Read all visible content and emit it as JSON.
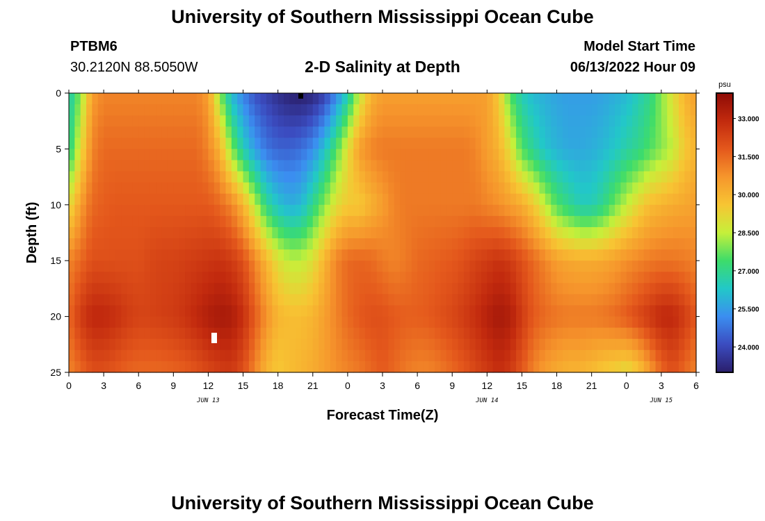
{
  "header": {
    "title": "University of Southern Mississippi Ocean Cube",
    "station": "PTBM6",
    "coords": "30.2120N  88.5050W",
    "subtitle": "2-D Salinity at Depth",
    "start_label": "Model Start Time",
    "start_value": "06/13/2022 Hour 09"
  },
  "footer": {
    "title": "University of Southern Mississippi Ocean Cube"
  },
  "colors": {
    "stops": [
      "#2a1e6b",
      "#3b4cc0",
      "#3b8ef0",
      "#22c8c8",
      "#3ddc6a",
      "#c6f03a",
      "#f7c533",
      "#f6962c",
      "#e4581c",
      "#c22a0e",
      "#8e0b06"
    ]
  },
  "chart_data": {
    "type": "heatmap",
    "title": "2-D Salinity at Depth",
    "xlabel": "Forecast Time(Z)",
    "ylabel": "Depth (ft)",
    "x_range_hours": [
      0,
      54
    ],
    "y_range_ft": [
      0,
      25
    ],
    "y_ticks": [
      0,
      5,
      10,
      15,
      20,
      25
    ],
    "y_tick_labels": [
      "0",
      "5",
      "10",
      "15",
      "20",
      "25"
    ],
    "x_ticks": [
      0,
      3,
      6,
      9,
      12,
      15,
      18,
      21,
      24,
      27,
      30,
      33,
      36,
      39,
      42,
      45,
      48,
      51,
      54
    ],
    "x_tick_labels": [
      "0",
      "3",
      "6",
      "9",
      "12",
      "15",
      "18",
      "21",
      "0",
      "3",
      "6",
      "9",
      "12",
      "15",
      "18",
      "21",
      "0",
      "3",
      "6"
    ],
    "date_labels": [
      {
        "hour": 12,
        "label": "JUN 13"
      },
      {
        "hour": 36,
        "label": "JUN 14"
      },
      {
        "hour": 51,
        "label": "JUN 15"
      }
    ],
    "colorbar": {
      "unit": "psu",
      "range": [
        23.0,
        34.0
      ],
      "ticks": [
        33.0,
        31.5,
        30.0,
        28.5,
        27.0,
        25.5,
        24.0
      ],
      "tick_labels": [
        "33.000",
        "31.500",
        "30.000",
        "28.500",
        "27.000",
        "25.500",
        "24.000"
      ]
    },
    "grid_hours": [
      0,
      1,
      2,
      3,
      4,
      5,
      6,
      7,
      8,
      9,
      10,
      11,
      12,
      13,
      14,
      15,
      16,
      17,
      18,
      19,
      20,
      21,
      22,
      23,
      24,
      25,
      26,
      27,
      28,
      29,
      30,
      31,
      32,
      33,
      34,
      35,
      36,
      37,
      38,
      39,
      40,
      41,
      42,
      43,
      44,
      45,
      46,
      47,
      48,
      49,
      50,
      51,
      52,
      53,
      54
    ],
    "grid_depths_ft": [
      0,
      5,
      10,
      15,
      20,
      25
    ],
    "salinity_psu": [
      [
        26.5,
        28.0,
        30.5,
        31.0,
        31.0,
        31.0,
        31.0,
        31.0,
        31.0,
        31.0,
        31.0,
        31.0,
        30.5,
        28.0,
        26.0,
        25.0,
        24.2,
        23.8,
        23.4,
        23.1,
        23.0,
        23.2,
        23.8,
        25.0,
        26.5,
        28.5,
        30.0,
        30.5,
        30.5,
        30.5,
        30.5,
        30.5,
        30.5,
        30.5,
        30.5,
        30.5,
        30.5,
        29.5,
        27.5,
        26.5,
        26.0,
        25.8,
        25.6,
        25.5,
        25.5,
        25.5,
        25.6,
        25.8,
        26.0,
        26.5,
        27.0,
        28.0,
        29.0,
        30.0,
        30.5
      ],
      [
        26.8,
        29.0,
        31.0,
        31.5,
        31.5,
        31.5,
        31.5,
        31.5,
        31.5,
        31.5,
        31.5,
        31.5,
        31.0,
        30.0,
        28.0,
        26.5,
        25.5,
        24.8,
        24.5,
        24.5,
        24.7,
        25.2,
        26.2,
        27.5,
        29.0,
        30.5,
        31.0,
        31.2,
        31.2,
        31.2,
        31.2,
        31.2,
        31.2,
        31.2,
        31.2,
        31.0,
        30.5,
        30.0,
        29.0,
        27.5,
        26.8,
        26.2,
        25.9,
        25.7,
        25.7,
        25.8,
        26.0,
        26.3,
        26.7,
        27.0,
        27.5,
        28.0,
        28.5,
        29.5,
        30.0
      ],
      [
        29.0,
        30.5,
        31.5,
        31.7,
        31.8,
        31.8,
        31.8,
        31.8,
        31.8,
        31.8,
        31.8,
        31.8,
        31.8,
        31.5,
        31.0,
        30.0,
        28.5,
        27.0,
        26.2,
        25.8,
        26.0,
        27.0,
        28.0,
        29.0,
        29.5,
        29.5,
        30.0,
        30.5,
        31.0,
        31.2,
        31.2,
        31.2,
        31.2,
        31.2,
        31.2,
        31.2,
        31.0,
        30.8,
        30.5,
        30.2,
        29.5,
        28.5,
        27.5,
        27.0,
        26.5,
        26.5,
        27.0,
        27.8,
        28.5,
        29.2,
        29.8,
        30.0,
        30.2,
        30.3,
        30.5
      ],
      [
        31.0,
        31.5,
        32.0,
        32.0,
        32.0,
        32.0,
        32.0,
        32.2,
        32.3,
        32.3,
        32.4,
        32.5,
        32.6,
        32.7,
        32.5,
        32.0,
        31.0,
        30.0,
        29.0,
        28.5,
        28.5,
        29.0,
        30.0,
        31.0,
        31.5,
        31.6,
        31.5,
        31.2,
        31.0,
        31.2,
        31.5,
        31.6,
        31.7,
        31.8,
        32.0,
        32.3,
        32.5,
        32.7,
        32.5,
        32.0,
        31.5,
        31.0,
        30.5,
        30.3,
        30.2,
        30.2,
        30.3,
        30.5,
        30.8,
        31.0,
        31.2,
        31.3,
        31.3,
        31.2,
        31.0
      ],
      [
        31.5,
        32.5,
        33.0,
        33.0,
        32.8,
        32.5,
        32.3,
        32.3,
        32.4,
        32.5,
        32.7,
        33.0,
        33.3,
        33.5,
        33.4,
        32.8,
        31.8,
        30.8,
        30.0,
        29.8,
        29.8,
        30.0,
        30.5,
        31.0,
        31.5,
        31.8,
        32.0,
        32.0,
        31.8,
        31.7,
        31.7,
        31.8,
        32.0,
        32.2,
        32.5,
        32.8,
        33.2,
        33.5,
        33.3,
        32.5,
        31.8,
        31.5,
        31.3,
        31.2,
        31.2,
        31.2,
        31.3,
        31.5,
        31.8,
        32.2,
        32.6,
        33.0,
        33.0,
        32.5,
        31.8
      ],
      [
        31.0,
        31.5,
        32.0,
        32.0,
        31.8,
        31.6,
        31.5,
        31.5,
        31.5,
        31.6,
        31.7,
        31.9,
        32.2,
        32.4,
        32.5,
        32.0,
        31.0,
        30.0,
        29.5,
        29.8,
        30.0,
        30.2,
        30.5,
        30.8,
        31.0,
        31.2,
        31.5,
        31.8,
        31.5,
        31.2,
        31.0,
        31.0,
        31.2,
        31.5,
        31.8,
        32.2,
        32.5,
        32.8,
        32.5,
        31.8,
        31.0,
        30.5,
        30.2,
        30.0,
        30.0,
        29.8,
        29.5,
        29.3,
        29.0,
        29.5,
        30.5,
        31.5,
        32.0,
        31.5,
        31.0
      ]
    ]
  }
}
